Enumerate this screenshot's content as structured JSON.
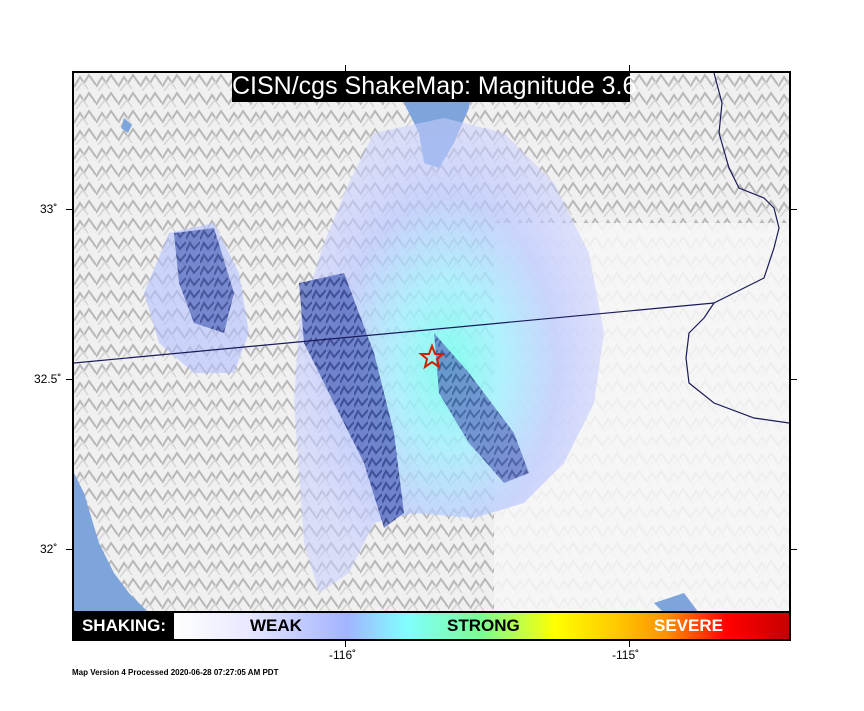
{
  "title": "CISN/cgs ShakeMap: Magnitude 3.6",
  "legend": {
    "shaking_label": "SHAKING:",
    "weak": "WEAK",
    "strong": "STRONG",
    "severe": "SEVERE"
  },
  "axes": {
    "latitude_labels": [
      "33˚",
      "32.5˚",
      "32˚"
    ],
    "longitude_labels": [
      "-116˚",
      "-115˚"
    ]
  },
  "footer": "Map Version 4 Processed 2020-06-28 07:27:05 AM PDT",
  "epicenter": {
    "marker": "star-icon",
    "color": "#cc2200"
  },
  "colors": {
    "water": "#7ea4dc",
    "intensity_light": "#c8ceff",
    "intensity_core": "#80ffff",
    "border_line": "#1a1a5a"
  }
}
